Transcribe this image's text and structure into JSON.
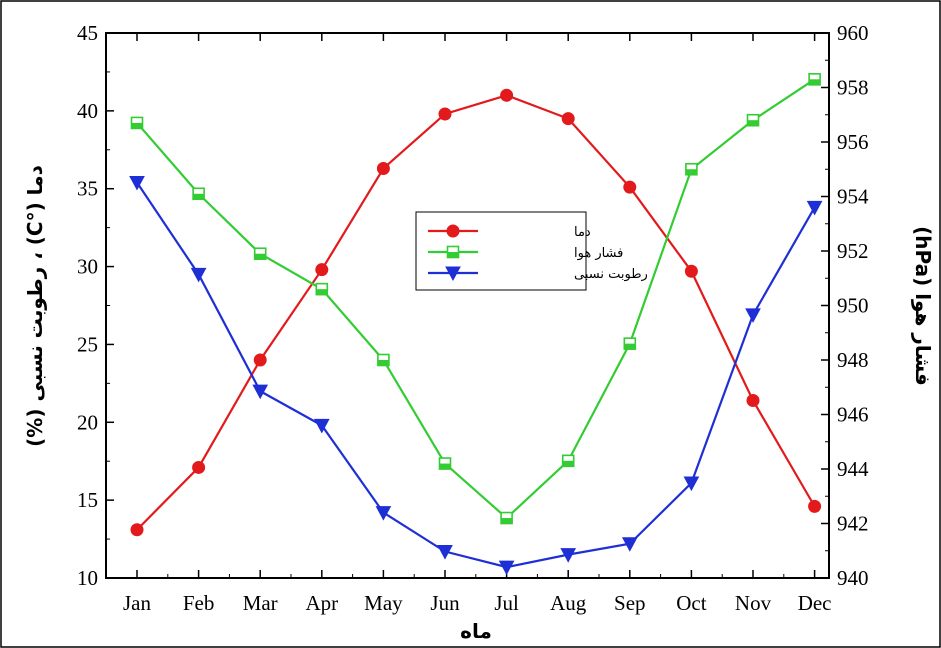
{
  "chart_data": {
    "type": "line",
    "xlabel": "ماه",
    "ylabel_left": "دما (°C) ، رطوبت نسبی (%)",
    "ylabel_right": "فشار هوا (hPa)",
    "categories": [
      "Jan",
      "Feb",
      "Mar",
      "Apr",
      "May",
      "Jun",
      "Jul",
      "Aug",
      "Sep",
      "Oct",
      "Nov",
      "Dec"
    ],
    "y_left": {
      "min": 10,
      "max": 45,
      "ticks": [
        10,
        15,
        20,
        25,
        30,
        35,
        40,
        45
      ]
    },
    "y_right": {
      "min": 940,
      "max": 960,
      "ticks": [
        940,
        942,
        944,
        946,
        948,
        950,
        952,
        954,
        956,
        958,
        960
      ]
    },
    "legend_position": "center",
    "grid": false,
    "series": [
      {
        "name": "دما",
        "axis": "left",
        "color": "#e31a1c",
        "marker": "circle",
        "values": [
          13.1,
          17.1,
          24.0,
          29.8,
          36.3,
          39.8,
          41.0,
          39.5,
          35.1,
          29.7,
          21.4,
          14.6
        ]
      },
      {
        "name": "فشار هوا",
        "axis": "right",
        "color": "#33cc33",
        "marker": "square",
        "values": [
          956.7,
          954.1,
          951.9,
          950.6,
          948.0,
          944.2,
          942.2,
          944.3,
          948.6,
          955.0,
          956.8,
          958.3
        ]
      },
      {
        "name": "رطوبت نسبی",
        "axis": "left",
        "color": "#1f2fd6",
        "marker": "triangle-down",
        "values": [
          35.4,
          29.5,
          22.0,
          19.8,
          14.2,
          11.7,
          10.7,
          11.5,
          12.2,
          16.1,
          26.9,
          33.8
        ]
      }
    ]
  }
}
